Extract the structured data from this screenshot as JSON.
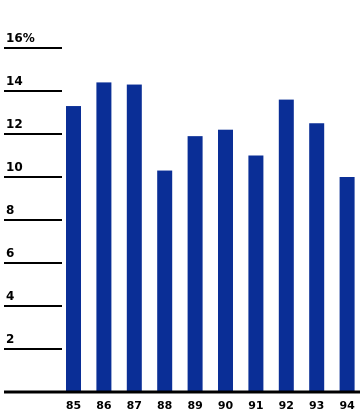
{
  "chart_data": {
    "type": "bar",
    "categories": [
      "85",
      "86",
      "87",
      "88",
      "89",
      "90",
      "91",
      "92",
      "93",
      "94"
    ],
    "values": [
      13.3,
      14.4,
      14.3,
      10.3,
      11.9,
      12.2,
      11.0,
      13.6,
      12.5,
      10.0
    ],
    "y_ticks": [
      "16%",
      "14",
      "12",
      "10",
      "8",
      "6",
      "4",
      "2"
    ],
    "ylim": [
      0,
      16
    ],
    "bar_color": "#0a2e96",
    "grid": false
  }
}
